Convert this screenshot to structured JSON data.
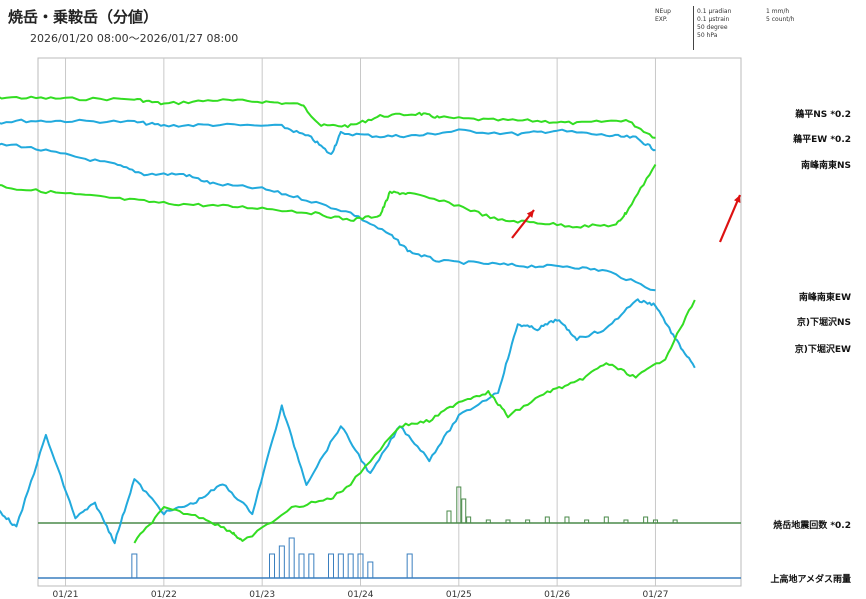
{
  "title": "焼岳・乗鞍岳（分値）",
  "period": "2026/01/20 08:00～2026/01/27 08:00",
  "scale_legend": {
    "col1": [
      "NEup",
      "EXP."
    ],
    "col2": [
      "0.1 μradian",
      "0.1 μstrain",
      "50 degree",
      "50 hPa"
    ],
    "col3": [
      "1 mm/h",
      "5 count/h"
    ]
  },
  "colors": {
    "green": "#33dd22",
    "blue": "#22aadd",
    "baseline_green": "#4a8a4a",
    "baseline_blue": "#3a7fbf",
    "grid": "#c8c8c8",
    "arrow": "#dd1111"
  },
  "chart_data": {
    "type": "line",
    "x_ticks": [
      "01/21",
      "01/22",
      "01/23",
      "01/24",
      "01/25",
      "01/26",
      "01/27"
    ],
    "series": [
      {
        "name": "鵜平NS *0.2",
        "color": "#33dd22",
        "values": [
          [
            0,
            0.92
          ],
          [
            0.5,
            0.918
          ],
          [
            1,
            0.916
          ],
          [
            1.7,
            0.915
          ],
          [
            2,
            0.905
          ],
          [
            2.5,
            0.913
          ],
          [
            3,
            0.91
          ],
          [
            3.4,
            0.904
          ],
          [
            3.6,
            0.86
          ],
          [
            3.9,
            0.86
          ],
          [
            4.2,
            0.88
          ],
          [
            4.6,
            0.885
          ],
          [
            4.8,
            0.877
          ],
          [
            5.3,
            0.872
          ],
          [
            5.8,
            0.87
          ],
          [
            6.2,
            0.865
          ],
          [
            6.7,
            0.872
          ],
          [
            7,
            0.835
          ]
        ]
      },
      {
        "name": "鵜平EW *0.2",
        "color": "#22aadd",
        "values": [
          [
            0,
            0.862
          ],
          [
            0.5,
            0.87
          ],
          [
            1,
            0.87
          ],
          [
            1.7,
            0.868
          ],
          [
            2,
            0.86
          ],
          [
            2.5,
            0.862
          ],
          [
            3.2,
            0.859
          ],
          [
            3.5,
            0.835
          ],
          [
            3.7,
            0.8
          ],
          [
            3.8,
            0.845
          ],
          [
            4.2,
            0.838
          ],
          [
            4.6,
            0.84
          ],
          [
            5,
            0.85
          ],
          [
            5.6,
            0.843
          ],
          [
            6,
            0.85
          ],
          [
            6.5,
            0.84
          ],
          [
            6.8,
            0.835
          ],
          [
            7,
            0.81
          ]
        ]
      },
      {
        "name": "南峰南東NS",
        "color": "#22aadd",
        "values": [
          [
            0,
            0.82
          ],
          [
            0.5,
            0.82
          ],
          [
            1,
            0.8
          ],
          [
            1.5,
            0.78
          ],
          [
            1.8,
            0.76
          ],
          [
            2.2,
            0.76
          ],
          [
            2.5,
            0.74
          ],
          [
            3,
            0.73
          ],
          [
            3.4,
            0.71
          ],
          [
            3.9,
            0.68
          ],
          [
            4.3,
            0.635
          ],
          [
            4.5,
            0.6
          ],
          [
            4.8,
            0.58
          ],
          [
            5.3,
            0.575
          ],
          [
            5.7,
            0.57
          ],
          [
            6.1,
            0.57
          ],
          [
            6.5,
            0.56
          ],
          [
            7,
            0.52
          ]
        ]
      },
      {
        "name": "南峰南東EW",
        "color": "#33dd22",
        "values": [
          [
            0,
            0.75
          ],
          [
            0.5,
            0.73
          ],
          [
            1,
            0.72
          ],
          [
            1.5,
            0.71
          ],
          [
            2,
            0.7
          ],
          [
            2.5,
            0.695
          ],
          [
            3,
            0.69
          ],
          [
            3.5,
            0.68
          ],
          [
            3.9,
            0.665
          ],
          [
            4.2,
            0.675
          ],
          [
            4.3,
            0.722
          ],
          [
            4.5,
            0.72
          ],
          [
            5,
            0.695
          ],
          [
            5.4,
            0.665
          ],
          [
            5.8,
            0.66
          ],
          [
            6.2,
            0.652
          ],
          [
            6.6,
            0.655
          ],
          [
            6.7,
            0.68
          ],
          [
            7,
            0.78
          ]
        ]
      },
      {
        "name": "京)下堀沢NS",
        "color": "#22aadd",
        "values": [
          [
            0,
            0.06
          ],
          [
            0.3,
            0.07
          ],
          [
            0.5,
            0.03
          ],
          [
            0.8,
            0.22
          ],
          [
            1.1,
            0.05
          ],
          [
            1.3,
            0.08
          ],
          [
            1.5,
            0.0
          ],
          [
            1.7,
            0.13
          ],
          [
            2,
            0.06
          ],
          [
            2.3,
            0.08
          ],
          [
            2.6,
            0.12
          ],
          [
            2.9,
            0.06
          ],
          [
            3.2,
            0.28
          ],
          [
            3.45,
            0.12
          ],
          [
            3.8,
            0.24
          ],
          [
            4.1,
            0.14
          ],
          [
            4.4,
            0.24
          ],
          [
            4.7,
            0.17
          ],
          [
            5,
            0.26
          ],
          [
            5.4,
            0.31
          ],
          [
            5.6,
            0.45
          ],
          [
            5.8,
            0.44
          ],
          [
            6,
            0.46
          ],
          [
            6.2,
            0.42
          ],
          [
            6.5,
            0.44
          ],
          [
            6.8,
            0.5
          ],
          [
            7,
            0.49
          ],
          [
            7.2,
            0.42
          ],
          [
            7.4,
            0.36
          ]
        ]
      },
      {
        "name": "京)下堀沢EW",
        "color": "#33dd22",
        "values": [
          [
            1.7,
            0.0
          ],
          [
            2,
            0.07
          ],
          [
            2.4,
            0.05
          ],
          [
            2.7,
            0.02
          ],
          [
            2.8,
            0.0
          ],
          [
            3.3,
            0.07
          ],
          [
            3.7,
            0.09
          ],
          [
            3.9,
            0.12
          ],
          [
            4.4,
            0.24
          ],
          [
            4.7,
            0.25
          ],
          [
            5,
            0.29
          ],
          [
            5.3,
            0.31
          ],
          [
            5.5,
            0.26
          ],
          [
            5.9,
            0.31
          ],
          [
            6.2,
            0.33
          ],
          [
            6.5,
            0.37
          ],
          [
            6.8,
            0.34
          ],
          [
            7.1,
            0.38
          ],
          [
            7.4,
            0.5
          ]
        ]
      }
    ],
    "count_series": {
      "name": "焼岳地震回数 *0.2",
      "bars": [
        [
          4.9,
          4
        ],
        [
          5.0,
          12
        ],
        [
          5.05,
          8
        ],
        [
          5.1,
          2
        ],
        [
          5.3,
          1
        ],
        [
          5.5,
          1
        ],
        [
          5.7,
          1
        ],
        [
          5.9,
          2
        ],
        [
          6.1,
          2
        ],
        [
          6.3,
          1
        ],
        [
          6.5,
          2
        ],
        [
          6.7,
          1
        ],
        [
          6.9,
          2
        ],
        [
          7.0,
          1
        ],
        [
          7.2,
          1
        ]
      ]
    },
    "rain_series": {
      "name": "上高地アメダス雨量",
      "bars": [
        [
          1.7,
          3
        ],
        [
          3.1,
          3
        ],
        [
          3.2,
          4
        ],
        [
          3.3,
          5
        ],
        [
          3.4,
          3
        ],
        [
          3.5,
          3
        ],
        [
          3.7,
          3
        ],
        [
          3.8,
          3
        ],
        [
          3.9,
          3
        ],
        [
          4.0,
          3
        ],
        [
          4.1,
          2
        ],
        [
          4.5,
          3
        ]
      ]
    }
  }
}
